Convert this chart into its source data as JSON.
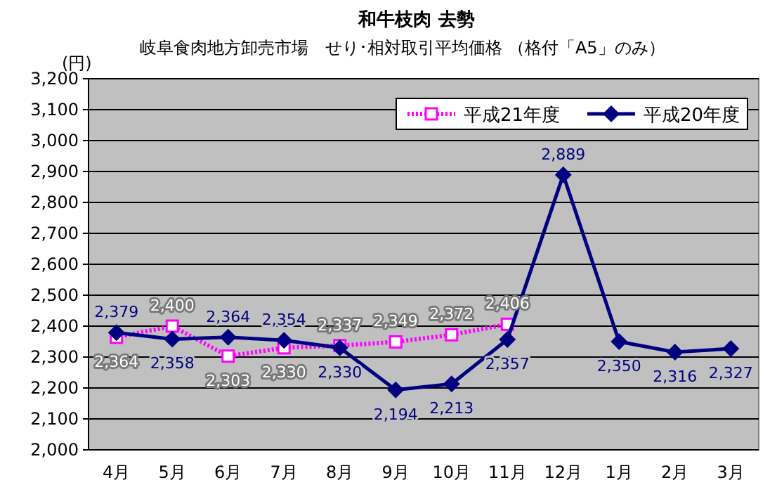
{
  "chart_data": {
    "type": "line",
    "title": "和牛枝肉 去勢",
    "subtitle": "岐阜食肉地方卸売市場　せり･相対取引平均価格 （格付「A5」のみ）",
    "ylabel": "(円)",
    "categories": [
      "4月",
      "5月",
      "6月",
      "7月",
      "8月",
      "9月",
      "10月",
      "11月",
      "12月",
      "1月",
      "2月",
      "3月"
    ],
    "series": [
      {
        "name": "平成21年度",
        "color": "#ff00ff",
        "marker": "square",
        "line_style": "dotted",
        "values": [
          2364,
          2400,
          2303,
          2330,
          2337,
          2349,
          2372,
          2406,
          null,
          null,
          null,
          null
        ],
        "value_labels": [
          "2,364",
          "2,400",
          "2,303",
          "2,330",
          "2,337",
          "2,349",
          "2,372",
          "2,406",
          null,
          null,
          null,
          null
        ]
      },
      {
        "name": "平成20年度",
        "color": "#000080",
        "marker": "diamond",
        "line_style": "solid",
        "values": [
          2379,
          2358,
          2364,
          2354,
          2330,
          2194,
          2213,
          2357,
          2889,
          2350,
          2316,
          2327
        ],
        "value_labels": [
          "2,379",
          "2,358",
          "2,364",
          "2,354",
          "2,330",
          "2,194",
          "2,213",
          "2,357",
          "2,889",
          "2,350",
          "2,316",
          "2,327"
        ]
      }
    ],
    "ylim": [
      2000,
      3200
    ],
    "yticks": [
      {
        "value": 2000,
        "label": "2,000"
      },
      {
        "value": 2100,
        "label": "2,100"
      },
      {
        "value": 2200,
        "label": "2,200"
      },
      {
        "value": 2300,
        "label": "2,300"
      },
      {
        "value": 2400,
        "label": "2,400"
      },
      {
        "value": 2500,
        "label": "2,500"
      },
      {
        "value": 2600,
        "label": "2,600"
      },
      {
        "value": 2700,
        "label": "2,700"
      },
      {
        "value": 2800,
        "label": "2,800"
      },
      {
        "value": 2900,
        "label": "2,900"
      },
      {
        "value": 3000,
        "label": "3,000"
      },
      {
        "value": 3100,
        "label": "3,100"
      },
      {
        "value": 3200,
        "label": "3,200"
      }
    ],
    "grid": "y",
    "legend": "top right"
  }
}
